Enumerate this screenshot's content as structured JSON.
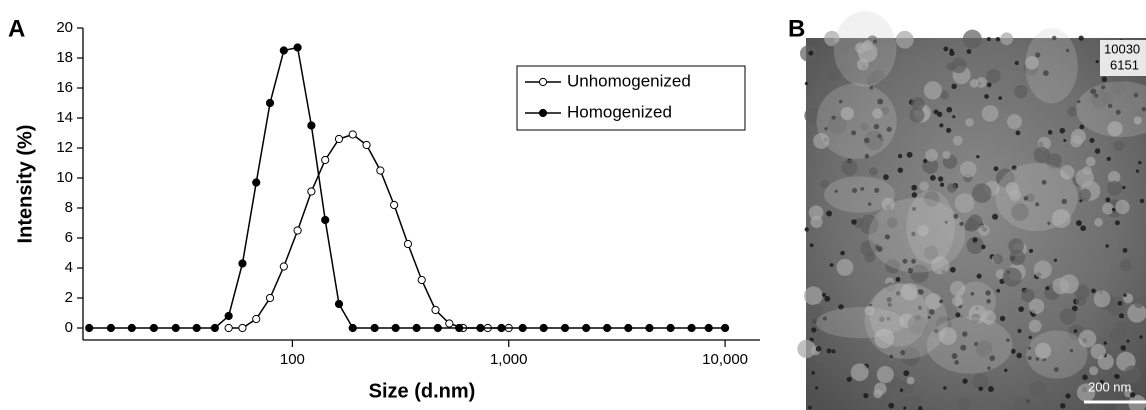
{
  "chart_data": {
    "type": "line",
    "panel_label": "A",
    "x_label": "Size (d.nm)",
    "y_label": "Intensity (%)",
    "xscale": "log",
    "xlim": [
      11,
      14500
    ],
    "ylim": [
      0,
      20
    ],
    "xticks": [
      100,
      {
        "value": 1000,
        "label": "1,000"
      },
      {
        "value": 10000,
        "label": "10,000"
      }
    ],
    "yticks": [
      0,
      2,
      4,
      6,
      8,
      10,
      12,
      14,
      16,
      18,
      20
    ],
    "legend": "upper right",
    "series": [
      {
        "name": "Unhomogenized",
        "color": "#000000",
        "marker": "open",
        "x": [
          50.75,
          58.77,
          68.06,
          78.82,
          91.28,
          105.7,
          122.4,
          141.8,
          164.2,
          190.1,
          220.2,
          255.0,
          295.3,
          342.0,
          396.1,
          458.7,
          531.2,
          615.1,
          800,
          1000
        ],
        "values": [
          0,
          0,
          0.6,
          2.0,
          4.1,
          6.5,
          9.1,
          11.2,
          12.6,
          12.9,
          12.2,
          10.5,
          8.2,
          5.6,
          3.2,
          1.2,
          0.3,
          0,
          0,
          0
        ]
      },
      {
        "name": "Homogenized",
        "color": "#000000",
        "marker": "filled",
        "x": [
          11.5,
          14.5,
          18.1,
          22.9,
          28.9,
          36.1,
          43.82,
          50.75,
          58.77,
          68.06,
          78.82,
          91.28,
          105.7,
          122.4,
          141.8,
          164.2,
          190.1,
          240,
          300,
          375,
          470,
          590,
          740,
          925,
          1160,
          1450,
          1820,
          2280,
          2850,
          3570,
          4470,
          5600,
          7000,
          8400,
          10000
        ],
        "values": [
          0,
          0,
          0,
          0,
          0,
          0,
          0,
          0.8,
          4.3,
          9.7,
          15.0,
          18.5,
          18.7,
          13.5,
          7.2,
          1.6,
          0,
          0,
          0,
          0,
          0,
          0,
          0,
          0,
          0,
          0,
          0,
          0,
          0,
          0,
          0,
          0,
          0,
          0,
          0
        ]
      }
    ]
  },
  "image_panel": {
    "panel_label": "B",
    "scale_bar": "200 nm",
    "corner_text": [
      "10030",
      "6151"
    ]
  }
}
